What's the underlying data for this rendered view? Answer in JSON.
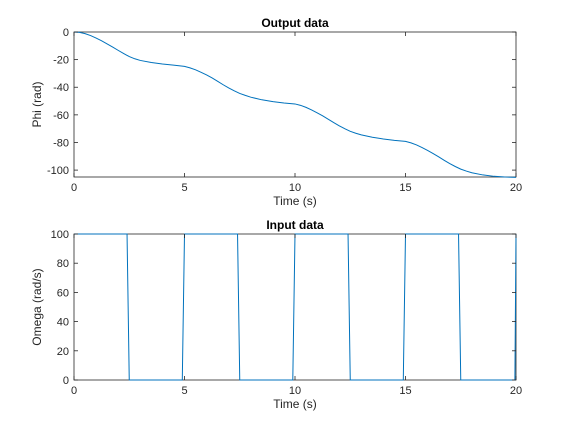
{
  "chart_data": [
    {
      "type": "line",
      "title": "Output data",
      "xlabel": "Time (s)",
      "ylabel": "Phi (rad)",
      "xlim": [
        0,
        20
      ],
      "ylim": [
        -105,
        0
      ],
      "xticks": [
        0,
        5,
        10,
        15,
        20
      ],
      "yticks": [
        -100,
        -80,
        -60,
        -40,
        -20,
        0
      ],
      "grid": false,
      "series": [
        {
          "color": "#0072BD",
          "x": [
            0,
            0.25,
            0.5,
            0.75,
            1,
            1.25,
            1.5,
            1.75,
            2,
            2.25,
            2.5,
            2.75,
            3,
            3.5,
            4,
            4.5,
            5,
            5.25,
            5.5,
            5.75,
            6,
            6.25,
            6.5,
            6.75,
            7,
            7.25,
            7.5,
            7.75,
            8,
            8.5,
            9,
            9.5,
            10,
            10.25,
            10.5,
            10.75,
            11,
            11.25,
            11.5,
            11.75,
            12,
            12.25,
            12.5,
            12.75,
            13,
            13.5,
            14,
            14.5,
            15,
            15.25,
            15.5,
            15.75,
            16,
            16.25,
            16.5,
            16.75,
            17,
            17.25,
            17.5,
            17.75,
            18,
            18.5,
            19,
            19.5,
            20
          ],
          "y": [
            0,
            -0.3,
            -1.2,
            -2.6,
            -4.4,
            -6.4,
            -8.6,
            -10.9,
            -13.3,
            -15.6,
            -17.8,
            -19.4,
            -20.6,
            -22.1,
            -23.2,
            -24.0,
            -24.9,
            -26.0,
            -27.4,
            -29.2,
            -31.1,
            -33.3,
            -35.7,
            -38.2,
            -40.5,
            -42.6,
            -44.5,
            -45.9,
            -47.2,
            -49.1,
            -50.4,
            -51.4,
            -52.1,
            -53.1,
            -54.6,
            -56.4,
            -58.5,
            -60.7,
            -63.1,
            -65.6,
            -67.9,
            -70.0,
            -71.9,
            -73.3,
            -74.5,
            -76.2,
            -77.5,
            -78.5,
            -79.2,
            -80.3,
            -81.8,
            -83.7,
            -85.8,
            -88.0,
            -90.4,
            -92.9,
            -95.3,
            -97.4,
            -99.3,
            -100.7,
            -101.9,
            -103.5,
            -104.5,
            -105.0,
            -105.3
          ]
        }
      ]
    },
    {
      "type": "line",
      "title": "Input data",
      "xlabel": "Time (s)",
      "ylabel": "Omega (rad/s)",
      "xlim": [
        0,
        20
      ],
      "ylim": [
        0,
        100
      ],
      "xticks": [
        0,
        5,
        10,
        15,
        20
      ],
      "yticks": [
        0,
        20,
        40,
        60,
        80,
        100
      ],
      "grid": false,
      "series": [
        {
          "color": "#0072BD",
          "x": [
            0,
            2.4,
            2.5,
            4.9,
            5.0,
            7.4,
            7.5,
            9.9,
            10.0,
            12.4,
            12.5,
            14.9,
            15.0,
            17.4,
            17.5,
            19.95,
            20
          ],
          "y": [
            100,
            100,
            0,
            0,
            100,
            100,
            0,
            0,
            100,
            100,
            0,
            0,
            100,
            100,
            0,
            0,
            100
          ]
        }
      ]
    }
  ]
}
